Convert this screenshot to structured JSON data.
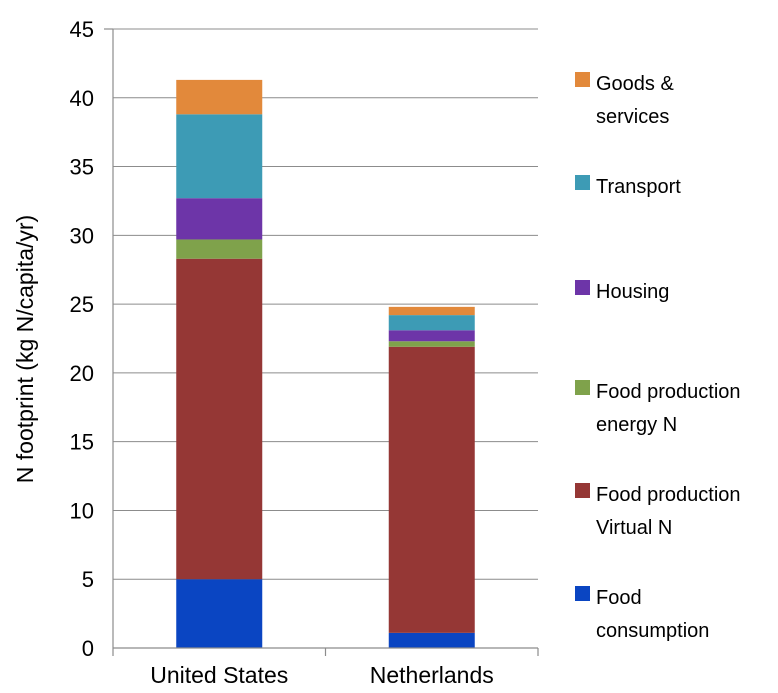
{
  "chart_data": {
    "type": "bar",
    "stacked": true,
    "categories": [
      "United States",
      "Netherlands"
    ],
    "ylabel": "N footprint (kg N/capita/yr)",
    "xlabel": "",
    "ylim": [
      0,
      45
    ],
    "yticks": [
      0,
      5,
      10,
      15,
      20,
      25,
      30,
      35,
      40,
      45
    ],
    "grid": "horizontal",
    "legend_position": "right",
    "series": [
      {
        "name": "Food consumption",
        "color": "#0a45c2",
        "values": [
          5.0,
          1.1
        ]
      },
      {
        "name": "Food production Virtual N",
        "color": "#953735",
        "values": [
          23.3,
          20.8
        ]
      },
      {
        "name": "Food production energy N",
        "color": "#7fa24b",
        "values": [
          1.4,
          0.4
        ]
      },
      {
        "name": "Housing",
        "color": "#6d35a8",
        "values": [
          3.0,
          0.8
        ]
      },
      {
        "name": "Transport",
        "color": "#3d9bb5",
        "values": [
          6.1,
          1.1
        ]
      },
      {
        "name": "Goods & services",
        "color": "#e2893b",
        "values": [
          2.5,
          0.6
        ]
      }
    ]
  },
  "legend": {
    "items": [
      {
        "lines": [
          "Goods &",
          "services"
        ],
        "color": "#e2893b"
      },
      {
        "lines": [
          "Transport"
        ],
        "color": "#3d9bb5"
      },
      {
        "lines": [
          "Housing"
        ],
        "color": "#6d35a8"
      },
      {
        "lines": [
          "Food production",
          "energy N"
        ],
        "color": "#7fa24b"
      },
      {
        "lines": [
          "Food production",
          "Virtual N"
        ],
        "color": "#953735"
      },
      {
        "lines": [
          "Food",
          "consumption"
        ],
        "color": "#0a45c2"
      }
    ]
  }
}
